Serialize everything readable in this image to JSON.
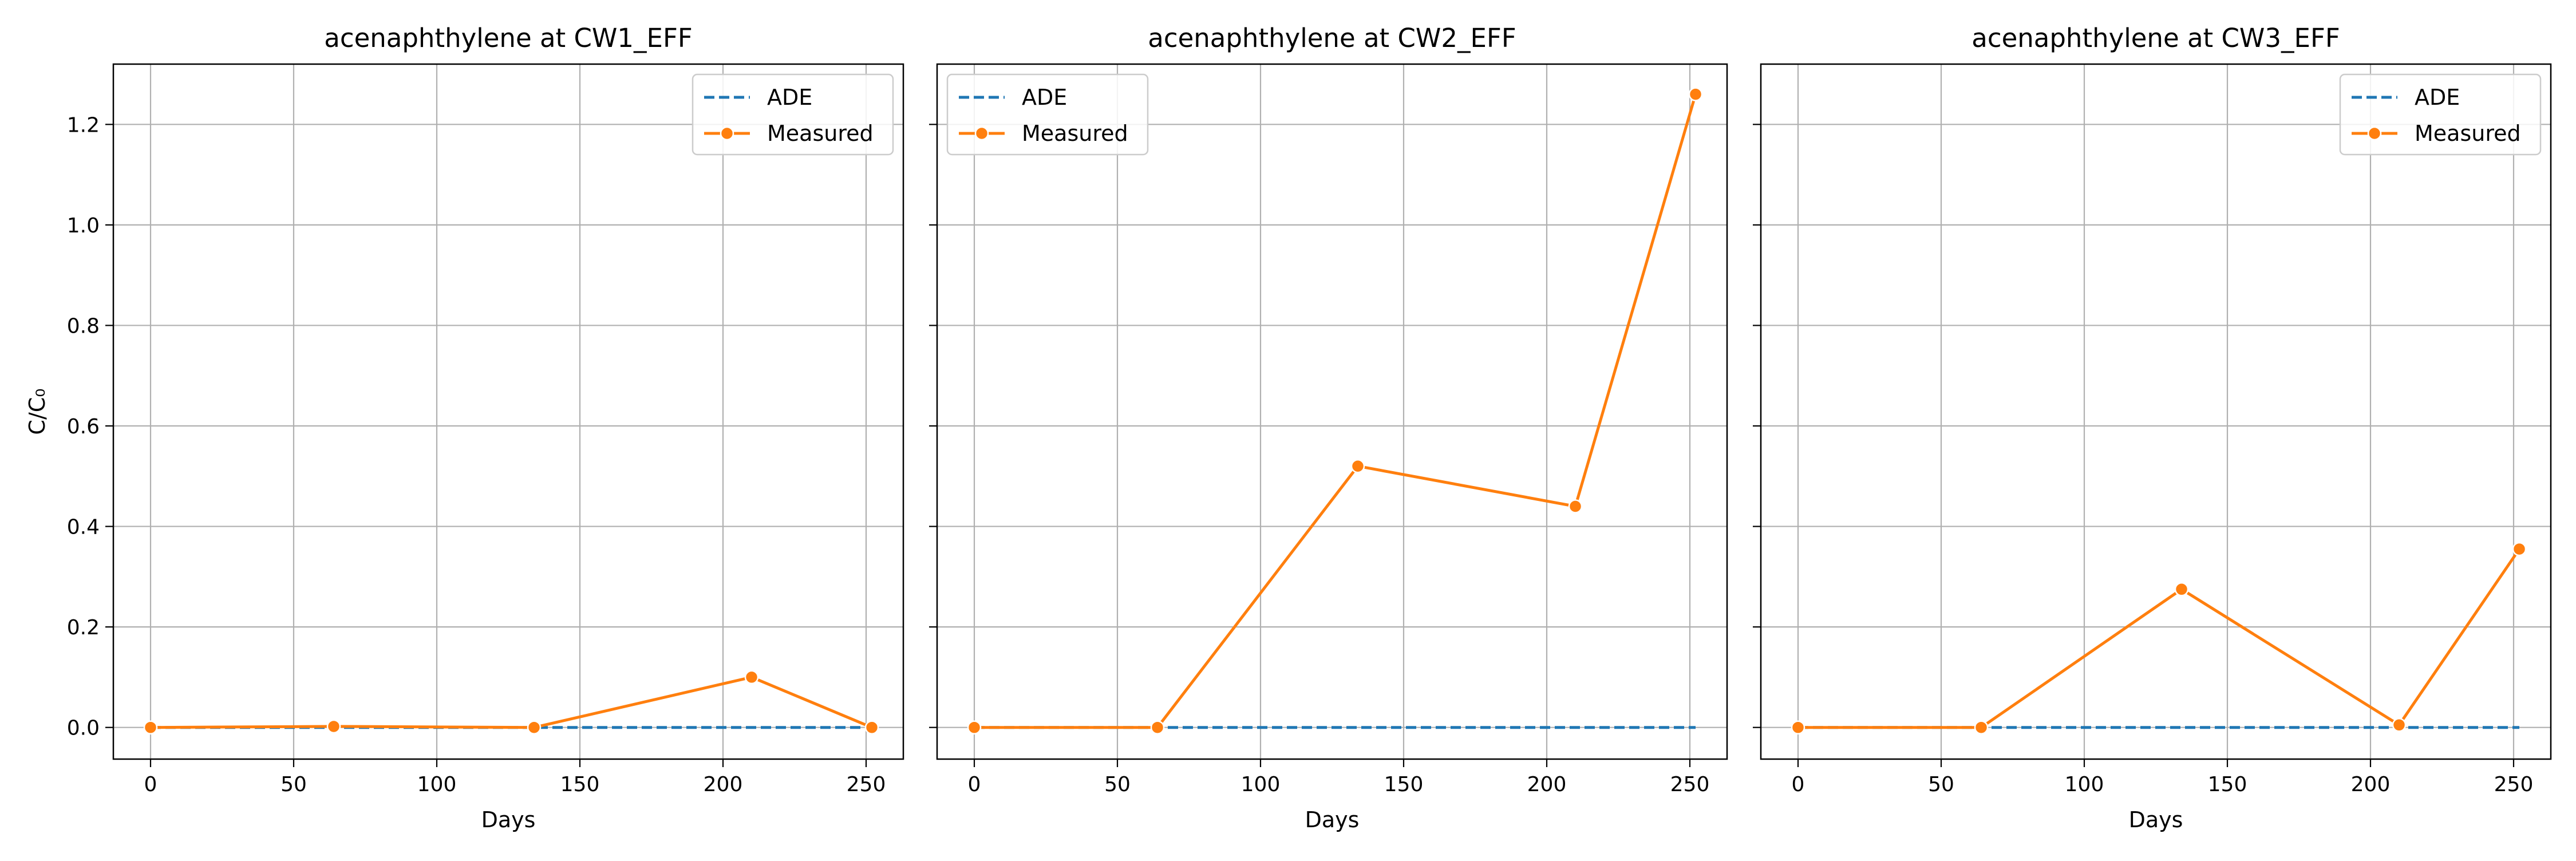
{
  "chart_data": [
    {
      "type": "line",
      "title": "acenaphthylene at CW1_EFF",
      "xlabel": "Days",
      "ylabel": "C/C₀",
      "xlim": [
        -13,
        263
      ],
      "ylim": [
        -0.063,
        1.32
      ],
      "xticks": [
        0,
        50,
        100,
        150,
        200,
        250
      ],
      "yticks": [
        0.0,
        0.2,
        0.4,
        0.6,
        0.8,
        1.0,
        1.2
      ],
      "grid": true,
      "legend_position": "top-right",
      "series": [
        {
          "name": "ADE",
          "style": "dashed",
          "color": "#1f77b4",
          "x": [
            0,
            64,
            134,
            210,
            252
          ],
          "y": [
            0.0,
            0.0,
            0.0,
            0.0,
            0.0
          ]
        },
        {
          "name": "Measured",
          "style": "solid-markers",
          "color": "#ff7f0e",
          "x": [
            0,
            64,
            134,
            210,
            252
          ],
          "y": [
            0.0,
            0.002,
            0.0,
            0.1,
            0.0
          ]
        }
      ]
    },
    {
      "type": "line",
      "title": "acenaphthylene at CW2_EFF",
      "xlabel": "Days",
      "ylabel": "",
      "xlim": [
        -13,
        263
      ],
      "ylim": [
        -0.063,
        1.32
      ],
      "xticks": [
        0,
        50,
        100,
        150,
        200,
        250
      ],
      "yticks": [
        0.0,
        0.2,
        0.4,
        0.6,
        0.8,
        1.0,
        1.2
      ],
      "grid": true,
      "legend_position": "top-left",
      "series": [
        {
          "name": "ADE",
          "style": "dashed",
          "color": "#1f77b4",
          "x": [
            0,
            64,
            134,
            210,
            252
          ],
          "y": [
            0.0,
            0.0,
            0.0,
            0.0,
            0.0
          ]
        },
        {
          "name": "Measured",
          "style": "solid-markers",
          "color": "#ff7f0e",
          "x": [
            0,
            64,
            134,
            210,
            252
          ],
          "y": [
            0.0,
            0.0,
            0.52,
            0.44,
            1.26
          ]
        }
      ]
    },
    {
      "type": "line",
      "title": "acenaphthylene at CW3_EFF",
      "xlabel": "Days",
      "ylabel": "",
      "xlim": [
        -13,
        263
      ],
      "ylim": [
        -0.063,
        1.32
      ],
      "xticks": [
        0,
        50,
        100,
        150,
        200,
        250
      ],
      "yticks": [
        0.0,
        0.2,
        0.4,
        0.6,
        0.8,
        1.0,
        1.2
      ],
      "grid": true,
      "legend_position": "top-right",
      "series": [
        {
          "name": "ADE",
          "style": "dashed",
          "color": "#1f77b4",
          "x": [
            0,
            64,
            134,
            210,
            252
          ],
          "y": [
            0.0,
            0.0,
            0.0,
            0.0,
            0.0
          ]
        },
        {
          "name": "Measured",
          "style": "solid-markers",
          "color": "#ff7f0e",
          "x": [
            0,
            64,
            134,
            210,
            252
          ],
          "y": [
            0.0,
            0.0,
            0.275,
            0.005,
            0.355
          ]
        }
      ]
    }
  ]
}
